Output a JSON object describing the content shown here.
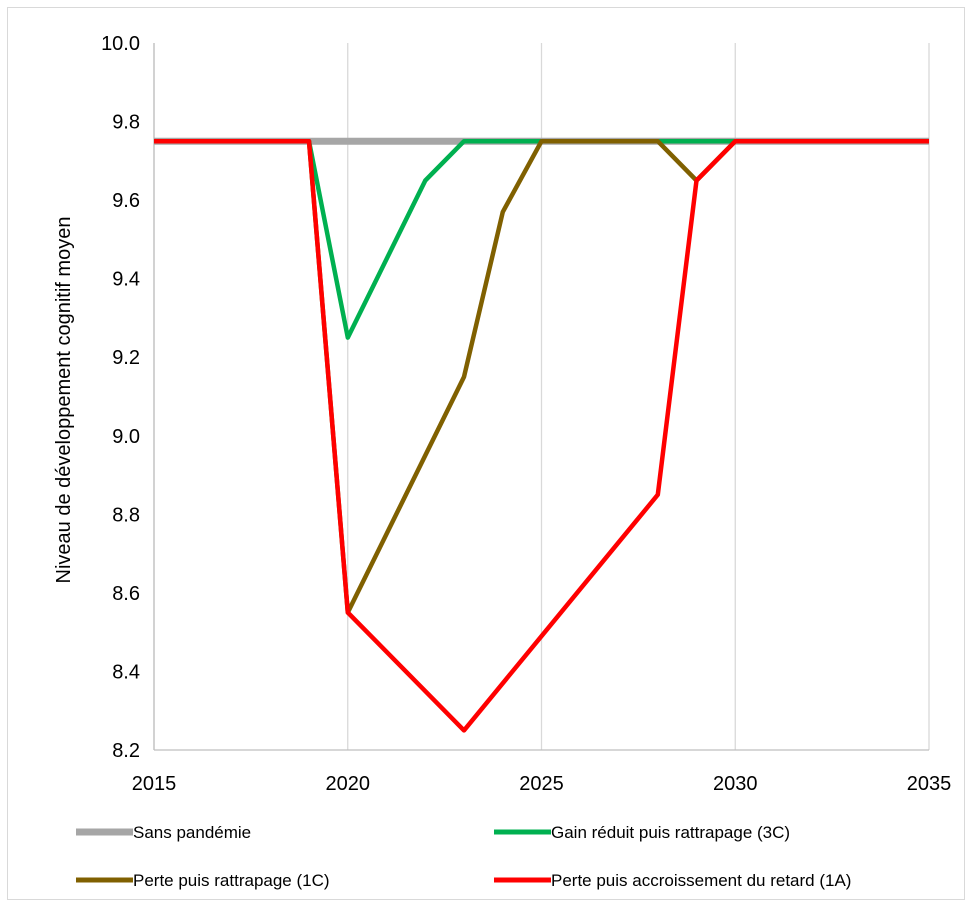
{
  "chart_data": {
    "type": "line",
    "title": "",
    "xlabel": "",
    "ylabel": "Niveau de développement cognitif moyen",
    "xlim": [
      2015,
      2035
    ],
    "ylim": [
      8.2,
      10.0
    ],
    "x_ticks": [
      "2015",
      "2020",
      "2025",
      "2030",
      "2035"
    ],
    "y_ticks": [
      "8.2",
      "8.4",
      "8.6",
      "8.8",
      "9.0",
      "9.2",
      "9.4",
      "9.6",
      "9.8",
      "10.0"
    ],
    "grid": "vertical",
    "legend_position": "bottom",
    "series": [
      {
        "name": "Sans pandémie",
        "color": "#a6a6a6",
        "x": [
          2015,
          2035
        ],
        "y": [
          9.75,
          9.75
        ]
      },
      {
        "name": "Gain réduit puis rattrapage (3C)",
        "color": "#00b050",
        "x": [
          2015,
          2019,
          2020,
          2022,
          2023,
          2025,
          2035
        ],
        "y": [
          9.75,
          9.75,
          9.25,
          9.65,
          9.75,
          9.75,
          9.75
        ]
      },
      {
        "name": "Perte puis rattrapage (1C)",
        "color": "#806000",
        "x": [
          2015,
          2019,
          2020,
          2023,
          2024,
          2025,
          2028,
          2029,
          2030,
          2035
        ],
        "y": [
          9.75,
          9.75,
          8.55,
          9.15,
          9.57,
          9.75,
          9.75,
          9.65,
          9.75,
          9.75
        ]
      },
      {
        "name": "Perte puis accroissement du retard (1A)",
        "color": "#ff0000",
        "x": [
          2015,
          2019,
          2020,
          2023,
          2028,
          2029,
          2030,
          2035
        ],
        "y": [
          9.75,
          9.75,
          8.55,
          8.25,
          8.85,
          9.65,
          9.75,
          9.75
        ]
      }
    ]
  }
}
